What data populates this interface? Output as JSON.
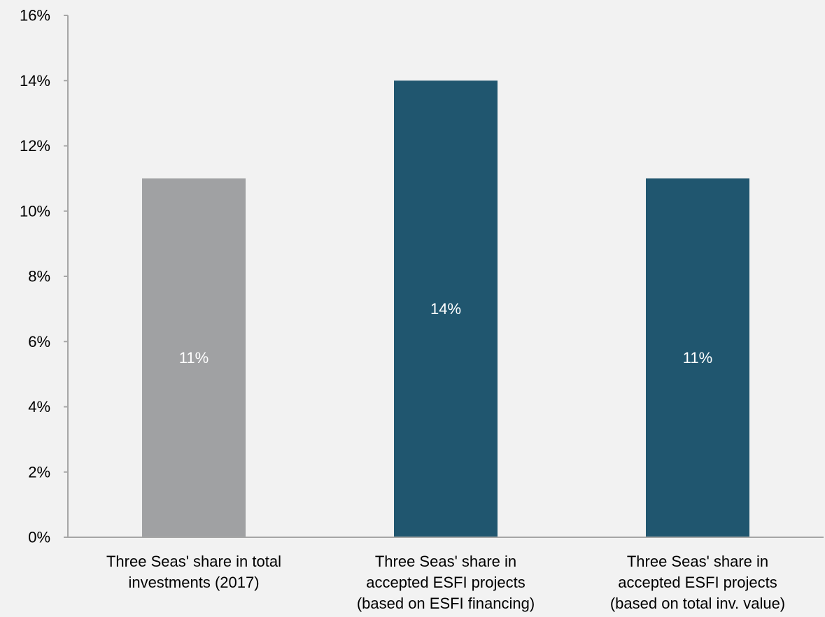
{
  "chart_data": {
    "type": "bar",
    "categories": [
      [
        "Three Seas' share in total",
        "investments (2017)"
      ],
      [
        "Three Seas' share in",
        "accepted ESFI projects",
        "(based on ESFI financing)"
      ],
      [
        "Three Seas' share in",
        "accepted ESFI projects",
        "(based on total inv. value)"
      ]
    ],
    "values": [
      11,
      14,
      11
    ],
    "data_labels": [
      "11%",
      "14%",
      "11%"
    ],
    "bar_colors": [
      "#a0a1a3",
      "#20566f",
      "#20566f"
    ],
    "data_label_color": "#ffffff",
    "axis_color": "#a6a6a6",
    "background": "#f2f2f2",
    "ylim": [
      0,
      16
    ],
    "y_ticks": [
      0,
      2,
      4,
      6,
      8,
      10,
      12,
      14,
      16
    ],
    "y_tick_labels": [
      "0%",
      "2%",
      "4%",
      "6%",
      "8%",
      "10%",
      "12%",
      "14%",
      "16%"
    ],
    "grid": false,
    "legend": "none",
    "title": "",
    "xlabel": "",
    "ylabel": ""
  }
}
